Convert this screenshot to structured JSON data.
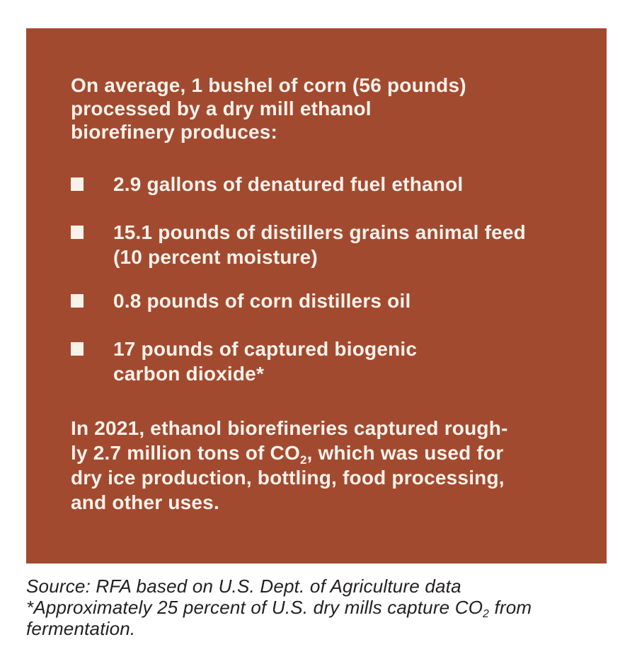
{
  "colors": {
    "box_bg": "#A24A30",
    "text": "#F8F2EA",
    "source_text": "#232020",
    "page_bg": "#FFFFFF"
  },
  "box": {
    "heading_lines": [
      "On average, 1 bushel of corn (56 pounds)",
      "processed by a dry mill ethanol",
      "biorefinery produces:"
    ],
    "bullets": [
      {
        "lines": [
          "2.9 gallons of denatured fuel ethanol"
        ]
      },
      {
        "lines": [
          "15.1 pounds of distillers grains animal feed",
          "(10 percent moisture)"
        ]
      },
      {
        "lines": [
          "0.8 pounds of corn distillers oil"
        ]
      },
      {
        "lines": [
          "17 pounds of captured biogenic",
          "carbon dioxide*"
        ]
      }
    ],
    "paragraph": {
      "line1": "In 2021, ethanol biorefineries captured rough-",
      "line2_pre": "ly 2.7 million tons of CO",
      "line2_sub": "2",
      "line2_post": ", which was used for",
      "line3": "dry ice production, bottling, food processing,",
      "line4": "and other uses."
    }
  },
  "source": {
    "line1": "Source: RFA based on U.S. Dept. of Agriculture data",
    "line2_pre": "*Approximately 25 percent of U.S. dry mills capture CO",
    "line2_sub": "2",
    "line2_post": " from",
    "line3": "fermentation."
  }
}
